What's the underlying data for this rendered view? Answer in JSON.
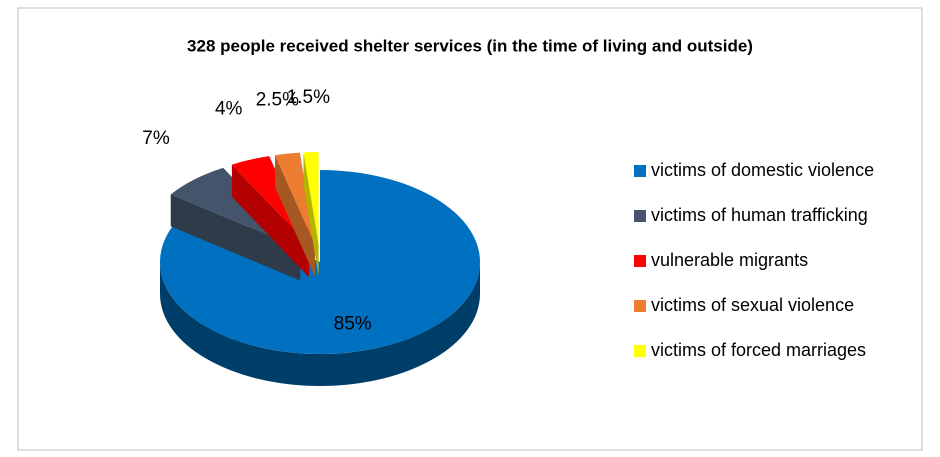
{
  "chart_data": {
    "type": "pie",
    "title": "328 people received shelter services (in the time of living and outside)",
    "categories": [
      "victims of domestic violence",
      "victims of human trafficking",
      "vulnerable migrants",
      "victims of sexual violence",
      "victims of forced marriages"
    ],
    "values": [
      85,
      7,
      4,
      2.5,
      1.5
    ],
    "value_labels": [
      "85%",
      "7%",
      "4%",
      "2.5%",
      "1.5%"
    ],
    "colors": [
      "#0070c0",
      "#44546a",
      "#ff0000",
      "#ed7d31",
      "#ffff00"
    ],
    "legend": "right"
  }
}
